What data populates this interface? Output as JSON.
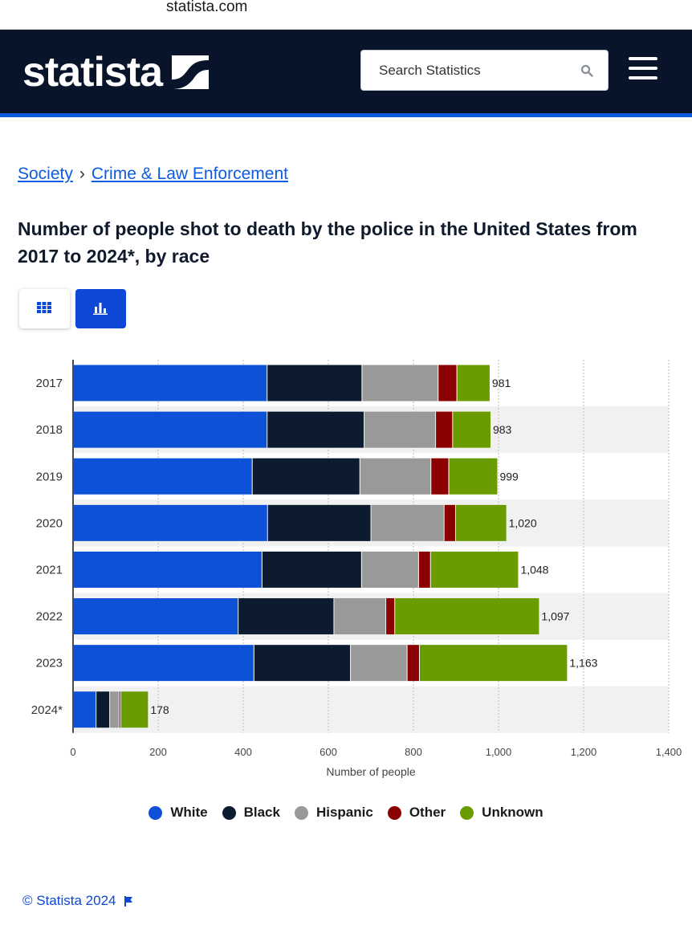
{
  "browser": {
    "domain": "statista.com"
  },
  "header": {
    "logo_text": "statista",
    "search_placeholder": "Search Statistics"
  },
  "breadcrumb": {
    "items": [
      "Society",
      "Crime & Law Enforcement"
    ],
    "separator": "›"
  },
  "title": "Number of people shot to death by the police in the United States from 2017 to 2024*, by race",
  "footer": {
    "copyright": "© Statista 2024"
  },
  "colors": {
    "brand_blue": "#0d5be0",
    "header_bg": "#07142a"
  },
  "chart_data": {
    "type": "bar",
    "orientation": "horizontal",
    "stacked": true,
    "title": "Number of people shot to death by the police in the United States from 2017 to 2024*, by race",
    "xlabel": "Number of people",
    "ylabel": "",
    "xlim": [
      0,
      1400
    ],
    "xticks": [
      0,
      200,
      400,
      600,
      800,
      1000,
      1200,
      1400
    ],
    "xtick_labels": [
      "0",
      "200",
      "400",
      "600",
      "800",
      "1,000",
      "1,200",
      "1,400"
    ],
    "categories": [
      "2017",
      "2018",
      "2019",
      "2020",
      "2021",
      "2022",
      "2023",
      "2024*"
    ],
    "series": [
      {
        "name": "White",
        "color": "#0d52d6",
        "values": [
          457,
          457,
          422,
          458,
          445,
          389,
          426,
          55
        ]
      },
      {
        "name": "Black",
        "color": "#0c1b30",
        "values": [
          223,
          228,
          253,
          243,
          234,
          225,
          227,
          32
        ]
      },
      {
        "name": "Hispanic",
        "color": "#999999",
        "values": [
          179,
          168,
          167,
          172,
          134,
          122,
          133,
          22
        ]
      },
      {
        "name": "Other",
        "color": "#8b0000",
        "values": [
          44,
          40,
          42,
          27,
          28,
          21,
          29,
          4
        ]
      },
      {
        "name": "Unknown",
        "color": "#6a9c00",
        "values": [
          78,
          90,
          115,
          120,
          207,
          340,
          348,
          65
        ]
      }
    ],
    "totals": [
      981,
      983,
      999,
      1020,
      1048,
      1097,
      1163,
      178
    ],
    "total_labels": [
      "981",
      "983",
      "999",
      "1,020",
      "1,048",
      "1,097",
      "1,163",
      "178"
    ],
    "legend_position": "bottom",
    "grid": true
  }
}
